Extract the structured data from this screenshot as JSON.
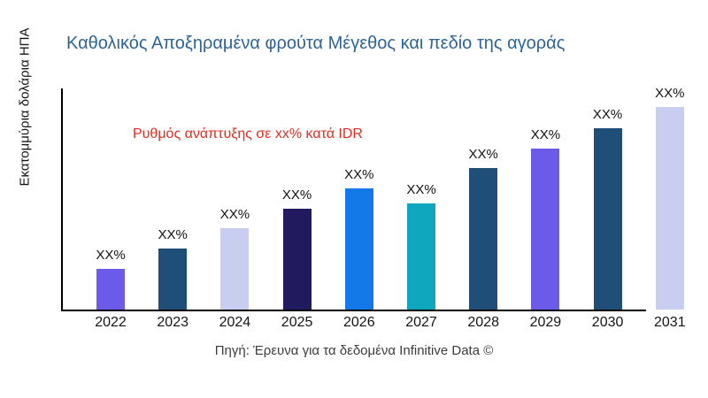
{
  "title": "Καθολικός Αποξηραμένα φρούτα Μέγεθος και πεδίο της αγοράς",
  "title_color": "#2e6496",
  "annotation": {
    "text": "Ρυθμός ανάπτυξης σε xx% κατά IDR",
    "color": "#e32b1e"
  },
  "source": "Πηγή: Έρευνα για τα δεδομένα Infinitive Data ©",
  "chart_data": {
    "type": "bar",
    "title": "Καθολικός Αποξηραμένα φρούτα Μέγεθος και πεδίο της αγοράς",
    "xlabel": "",
    "ylabel": "Εκατομμύρια δολάρια ΗΠΑ",
    "categories": [
      "2022",
      "2023",
      "2024",
      "2025",
      "2026",
      "2027",
      "2028",
      "2029",
      "2030",
      "2031"
    ],
    "values": [
      46,
      69,
      92,
      114,
      137,
      120,
      160,
      182,
      205,
      229
    ],
    "values_note": "relative bar heights; numeric axis not shown in chart",
    "data_labels": [
      "XX%",
      "XX%",
      "XX%",
      "XX%",
      "XX%",
      "XX%",
      "XX%",
      "XX%",
      "XX%",
      "XX%"
    ],
    "bar_colors": [
      "#6b5be8",
      "#1f4e79",
      "#c9cdef",
      "#221a5e",
      "#1478e8",
      "#10a7be",
      "#1f4e79",
      "#6b5be8",
      "#1f4e79",
      "#c9cdef"
    ],
    "grid": "off",
    "legend": "none",
    "axis_color": "#000000"
  }
}
